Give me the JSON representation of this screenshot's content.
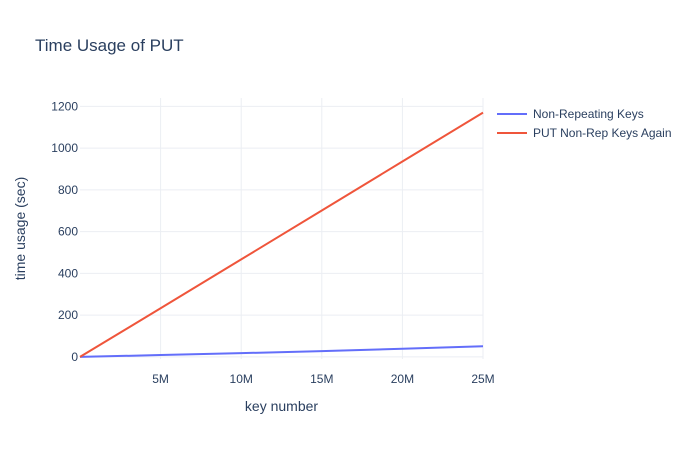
{
  "chart_data": {
    "type": "line",
    "title": "Time Usage of PUT",
    "xlabel": "key number",
    "ylabel": "time usage (sec)",
    "x": [
      0,
      5000000,
      10000000,
      15000000,
      20000000,
      25000000
    ],
    "series": [
      {
        "name": "Non-Repeating Keys",
        "color": "#636efa",
        "values": [
          0,
          9,
          18,
          28,
          39,
          51
        ]
      },
      {
        "name": "PUT Non-Rep Keys Again",
        "color": "#ef553b",
        "values": [
          0,
          233,
          467,
          701,
          936,
          1170
        ]
      }
    ],
    "xlim": [
      0,
      25000000
    ],
    "ylim": [
      -10,
      1240
    ],
    "x_ticks": [
      {
        "value": 5000000,
        "label": "5M"
      },
      {
        "value": 10000000,
        "label": "10M"
      },
      {
        "value": 15000000,
        "label": "15M"
      },
      {
        "value": 20000000,
        "label": "20M"
      },
      {
        "value": 25000000,
        "label": "25M"
      }
    ],
    "y_ticks": [
      {
        "value": 0,
        "label": "0"
      },
      {
        "value": 200,
        "label": "200"
      },
      {
        "value": 400,
        "label": "400"
      },
      {
        "value": 600,
        "label": "600"
      },
      {
        "value": 800,
        "label": "800"
      },
      {
        "value": 1000,
        "label": "1000"
      },
      {
        "value": 1200,
        "label": "1200"
      }
    ],
    "grid": true,
    "legend_position": "top-right"
  }
}
